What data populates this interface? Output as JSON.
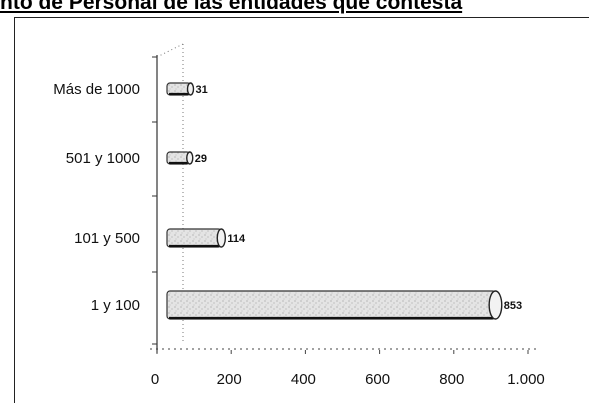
{
  "chart_data": {
    "type": "bar",
    "orientation": "horizontal",
    "title": "nto de Personal de las entidades que contesta",
    "categories": [
      "Más de 1000",
      "501 y 1000",
      "101 y 500",
      "1 y 100"
    ],
    "values": [
      31,
      29,
      114,
      853
    ],
    "data_labels": [
      "31",
      "29",
      "114",
      "853"
    ],
    "xlim": [
      0,
      1000
    ],
    "x_ticks": [
      "0",
      "200",
      "400",
      "600",
      "800",
      "1.000"
    ],
    "xlabel": "",
    "ylabel": "",
    "grid": false,
    "legend": "none",
    "bar_color": "#dcdcdc"
  }
}
